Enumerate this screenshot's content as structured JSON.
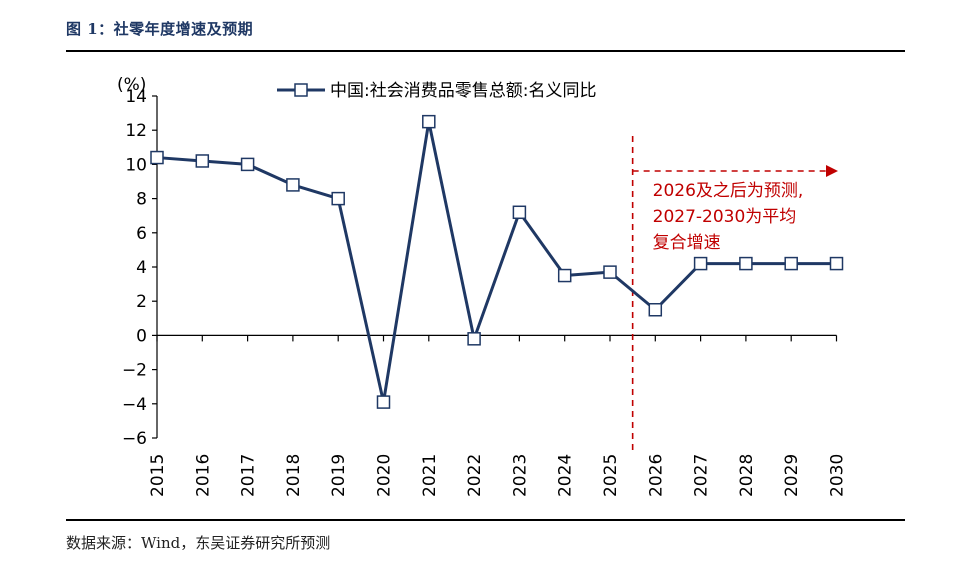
{
  "figure": {
    "title": "图 1：社零年度增速及预期",
    "source": "数据来源：Wind，东吴证券研究所预测"
  },
  "chart_data": {
    "type": "line",
    "ylabel": "(%)",
    "ylim": [
      -6,
      14
    ],
    "yticks": [
      -6,
      -4,
      -2,
      0,
      2,
      4,
      6,
      8,
      10,
      12,
      14
    ],
    "categories": [
      "2015",
      "2016",
      "2017",
      "2018",
      "2019",
      "2020",
      "2021",
      "2022",
      "2023",
      "2024",
      "2025",
      "2026",
      "2027",
      "2028",
      "2029",
      "2030"
    ],
    "series": [
      {
        "name": "中国:社会消费品零售总额:名义同比",
        "values": [
          10.4,
          10.2,
          10.0,
          8.8,
          8.0,
          -3.9,
          12.5,
          -0.2,
          7.2,
          3.5,
          3.7,
          1.5,
          4.2,
          4.2,
          4.2,
          4.2
        ]
      }
    ],
    "legend_position": "top-center",
    "grid": false,
    "annotation": {
      "lines": [
        "2026及之后为预测,",
        "2027-2030为平均",
        "复合增速"
      ],
      "divider_after": "2025"
    },
    "colors": {
      "series": "#1f3864",
      "annotation": "#c00000"
    }
  }
}
